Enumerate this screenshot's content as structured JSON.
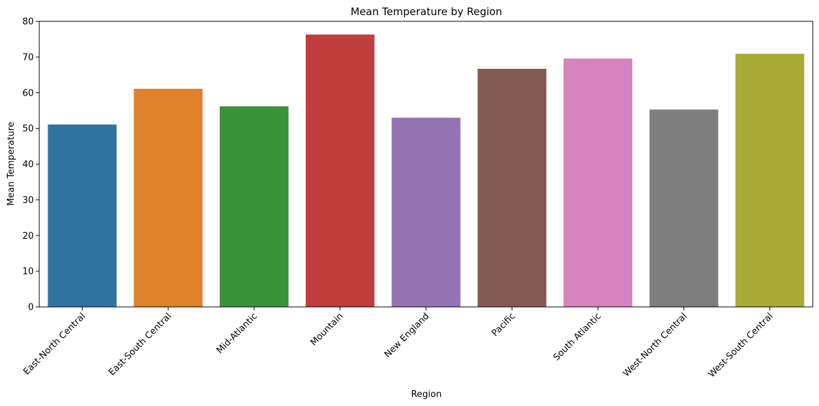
{
  "chart_data": {
    "type": "bar",
    "title": "Mean Temperature by Region",
    "xlabel": "Region",
    "ylabel": "Mean Temperature",
    "ylim": [
      0,
      80
    ],
    "yticks": [
      0,
      10,
      20,
      30,
      40,
      50,
      60,
      70,
      80
    ],
    "grid": false,
    "legend": "none",
    "categories": [
      "East-North Central",
      "East-South Central",
      "Mid-Atlantic",
      "Mountain",
      "New England",
      "Pacific",
      "South Atlantic",
      "West-North Central",
      "West-South Central"
    ],
    "values": [
      51.1,
      61.1,
      56.2,
      76.3,
      53.0,
      66.7,
      69.6,
      55.3,
      70.9
    ],
    "colors": [
      "#3274a1",
      "#e1812c",
      "#3a923a",
      "#c03d3e",
      "#9372b2",
      "#845b53",
      "#d684bd",
      "#7f7f7f",
      "#a9aa35"
    ]
  }
}
